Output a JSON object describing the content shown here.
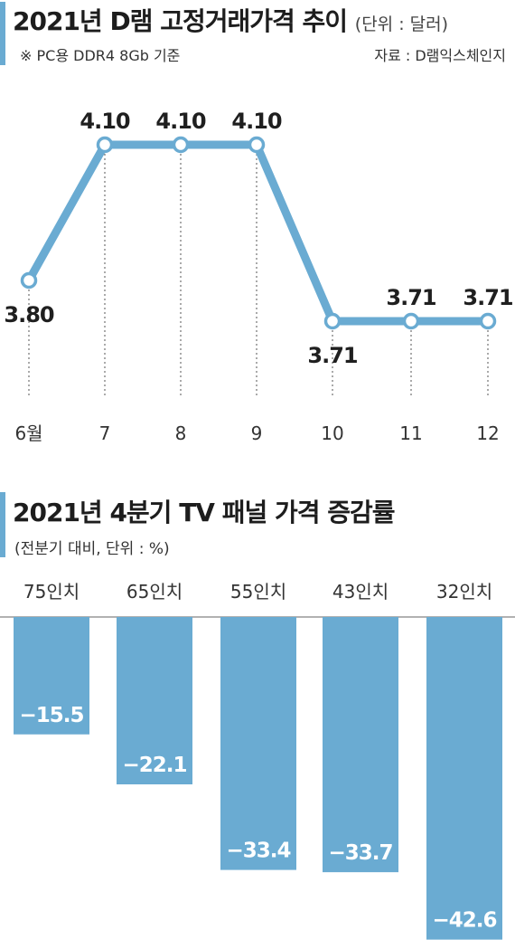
{
  "section1": {
    "title": "2021년 D램 고정거래가격 추이",
    "unit": "(단위 : 달러)",
    "note": "※ PC용 DDR4 8Gb 기준",
    "source": "자료 : D램익스체인지"
  },
  "section2": {
    "title": "2021년 4분기 TV 패널 가격 증감률",
    "unit": "(전분기 대비, 단위 : %)"
  },
  "colors": {
    "accent": "#6aabd2",
    "line": "#6aabd2",
    "bar": "#6aabd2"
  },
  "chart_data": [
    {
      "type": "line",
      "title": "2021년 D램 고정거래가격 추이",
      "x": [
        "6월",
        "7",
        "8",
        "9",
        "10",
        "11",
        "12"
      ],
      "series": [
        {
          "values": [
            3.8,
            4.1,
            4.1,
            4.1,
            3.71,
            3.71,
            3.71
          ]
        }
      ],
      "data_labels": [
        "3.80",
        "4.10",
        "4.10",
        "4.10",
        "3.71",
        "3.71",
        "3.71"
      ],
      "label_position": [
        "below",
        "above",
        "above",
        "above",
        "below",
        "above",
        "above"
      ],
      "ylim": [
        3.6,
        4.2
      ],
      "grid": false
    },
    {
      "type": "bar",
      "title": "2021년 4분기 TV 패널 가격 증감률",
      "categories": [
        "75인치",
        "65인치",
        "55인치",
        "43인치",
        "32인치"
      ],
      "values": [
        -15.5,
        -22.1,
        -33.4,
        -33.7,
        -42.6
      ],
      "data_labels": [
        "−15.5",
        "−22.1",
        "−33.4",
        "−33.7",
        "−42.6"
      ],
      "ylim": [
        -43.6,
        0
      ],
      "grid": false
    }
  ]
}
